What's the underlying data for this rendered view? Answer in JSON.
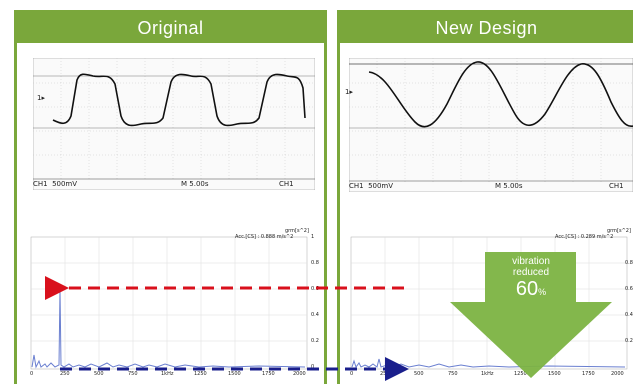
{
  "panels": {
    "left": {
      "title": "Original"
    },
    "right": {
      "title": "New Design"
    }
  },
  "scope": {
    "left": {
      "channel_label": "CH1",
      "volts": "500mV",
      "timebase": "M 5.00s",
      "trigger": "CH1",
      "marker": "1▸"
    },
    "right": {
      "channel_label": "CH1",
      "volts": "500mV",
      "timebase": "M 5.00s",
      "trigger": "CH1",
      "marker": "1▸"
    }
  },
  "fft": {
    "unit": "grm[s^2]",
    "acc_left": "Acc.[CS] : 0.888 m/s^2",
    "acc_right": "Acc.[CS] : 0.289 m/s^2",
    "x_ticks": [
      "0",
      "250",
      "500",
      "750",
      "1kHz",
      "1250",
      "1500",
      "1750",
      "2000"
    ],
    "y_ticks": [
      "1",
      "0.8",
      "0.6",
      "0.4",
      "0.2",
      "0"
    ]
  },
  "callout": {
    "line1": "vibration",
    "line2": "reduced",
    "value": "60",
    "unit": "%"
  },
  "colors": {
    "green": "#7aa73b",
    "red_arrow": "#d9101c",
    "blue_arrow": "#1a1f8c",
    "spectrum": "#6a7fd0"
  }
}
